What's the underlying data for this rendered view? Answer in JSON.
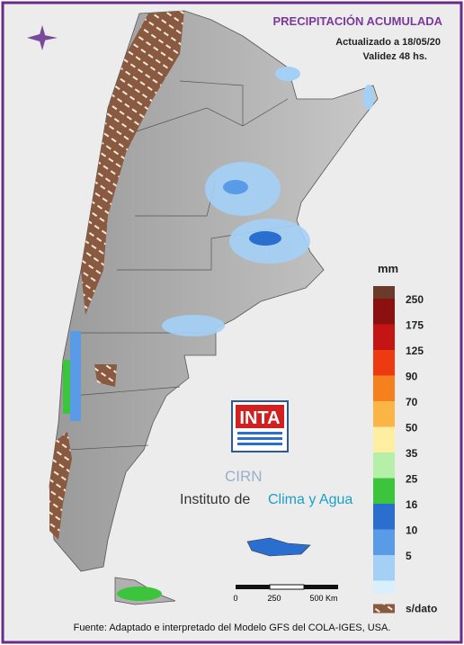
{
  "header": {
    "title": "PRECIPITACIÓN ACUMULADA",
    "updated": "Actualizado a 18/05/20",
    "validity": "Validez 48 hs."
  },
  "legend": {
    "title": "mm",
    "items": [
      {
        "label": "250",
        "color": "#8b1010"
      },
      {
        "label": "175",
        "color": "#c41414"
      },
      {
        "label": "125",
        "color": "#ee3a10"
      },
      {
        "label": "90",
        "color": "#f5801e"
      },
      {
        "label": "70",
        "color": "#fbb446"
      },
      {
        "label": "50",
        "color": "#fdeea0"
      },
      {
        "label": "35",
        "color": "#b6f0a8"
      },
      {
        "label": "25",
        "color": "#3cc43c"
      },
      {
        "label": "16",
        "color": "#2a6fd0"
      },
      {
        "label": "10",
        "color": "#5a9be8"
      },
      {
        "label": "5",
        "color": "#a4d0f6"
      }
    ],
    "top_color": "#6b3a2a",
    "nodata": "s/dato"
  },
  "scale": {
    "labels": [
      "0",
      "250",
      "500 Km"
    ]
  },
  "logo": {
    "inta": "INTA",
    "cirn": "CIRN",
    "institute": "Instituto de",
    "institute_accent": "Clima y Agua"
  },
  "footer": {
    "source": "Fuente: Adaptado e interpretado del Modelo GFS del COLA-IGES, USA."
  }
}
